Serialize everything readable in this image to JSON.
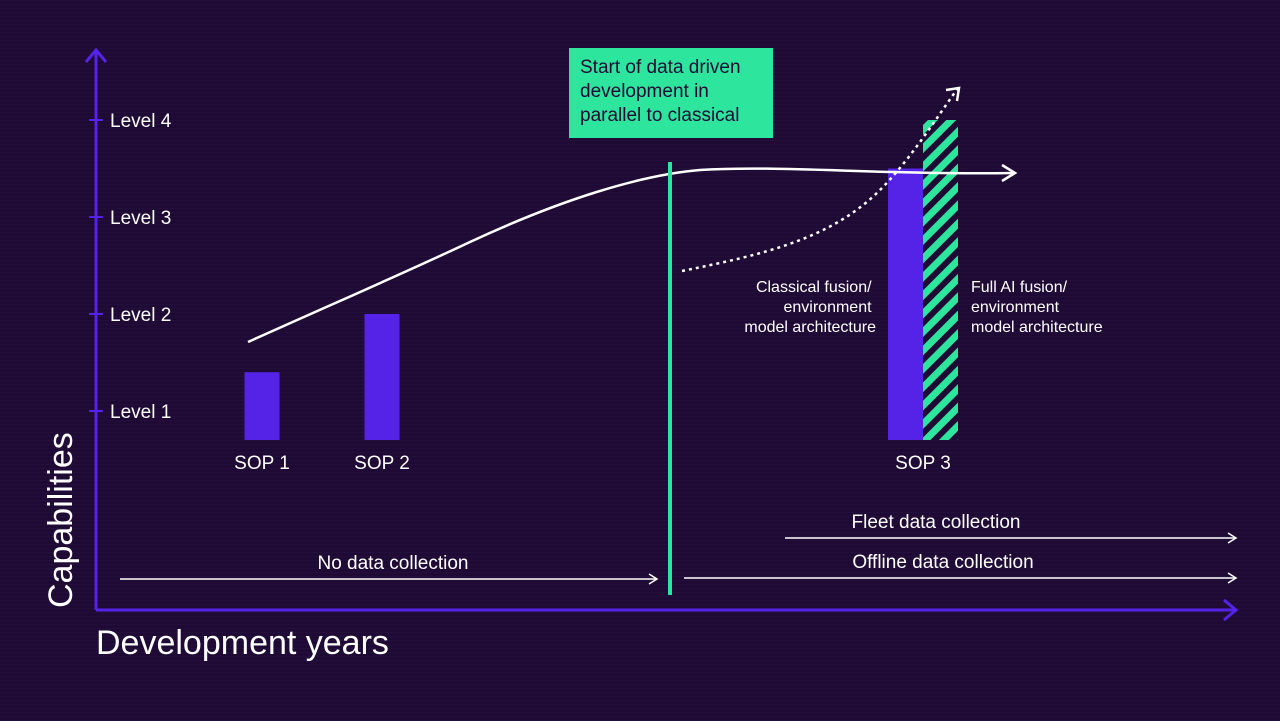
{
  "chart_data": {
    "type": "bar",
    "categories": [
      "SOP 1",
      "SOP 2",
      "SOP 3"
    ],
    "series": [
      {
        "values": [
          1.4,
          2.0,
          3.5
        ],
        "color": "#5522e8"
      },
      {
        "values": [
          null,
          null,
          4.0
        ],
        "color": "#2ee59d",
        "pattern": "striped"
      }
    ],
    "ylim": [
      0,
      5
    ],
    "xlabel": "Development years",
    "ylabel": "Capabilities",
    "yticks": [
      "Level 1",
      "Level 2",
      "Level 3",
      "Level 4"
    ],
    "annotations": {
      "callout": "Start of data driven development in parallel to classical",
      "classical_lines": [
        "Classical fusion/",
        "environment",
        "model architecture"
      ],
      "ai_lines": [
        "Full AI fusion/",
        "environment",
        "model architecture"
      ]
    },
    "data_phases": [
      {
        "label": "No data collection"
      },
      {
        "label": "Fleet data collection"
      },
      {
        "label": "Offline data collection"
      }
    ],
    "grid": false,
    "colors": {
      "axis": "#5522e8",
      "accent": "#2ee59d",
      "background": "#1e0a35",
      "text": "#ffffff"
    }
  }
}
